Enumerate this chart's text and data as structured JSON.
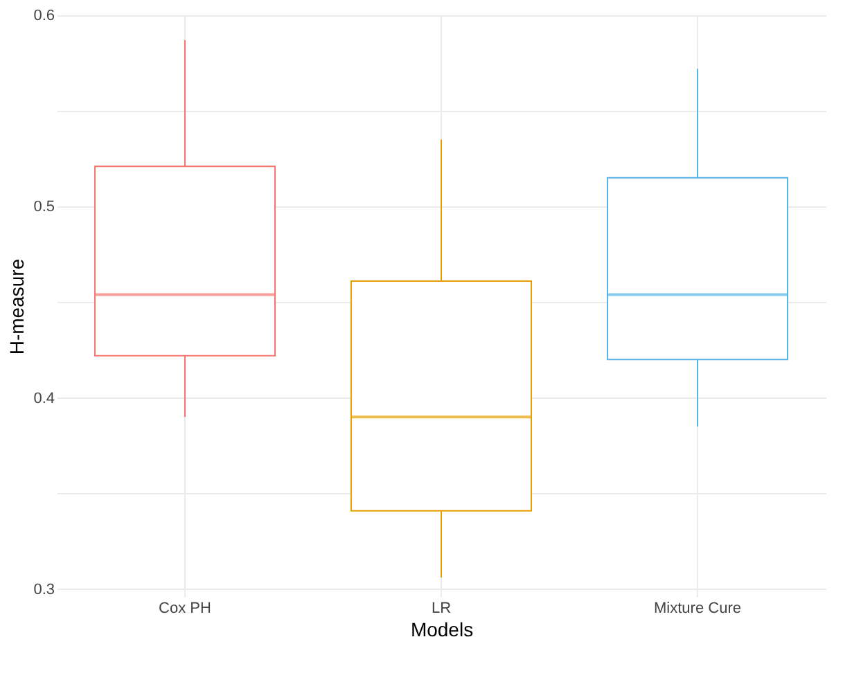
{
  "chart_data": {
    "type": "box",
    "xlabel": "Models",
    "ylabel": "H-measure",
    "categories": [
      "Cox PH",
      "LR",
      "Mixture Cure"
    ],
    "boxes": [
      {
        "low": 0.39,
        "q1": 0.422,
        "median": 0.454,
        "q3": 0.521,
        "high": 0.587
      },
      {
        "low": 0.306,
        "q1": 0.341,
        "median": 0.39,
        "q3": 0.461,
        "high": 0.535
      },
      {
        "low": 0.385,
        "q1": 0.42,
        "median": 0.454,
        "q3": 0.515,
        "high": 0.572
      }
    ],
    "colors": [
      "#f8766d",
      "#e69f00",
      "#56b4e9"
    ],
    "ylim": [
      0.296,
      0.6
    ],
    "yticks": [
      0.3,
      {
        "value": 0.35,
        "label": null
      },
      0.4,
      {
        "value": 0.45,
        "label": null
      },
      0.5,
      {
        "value": 0.55,
        "label": null
      },
      0.6
    ],
    "grid": true
  }
}
